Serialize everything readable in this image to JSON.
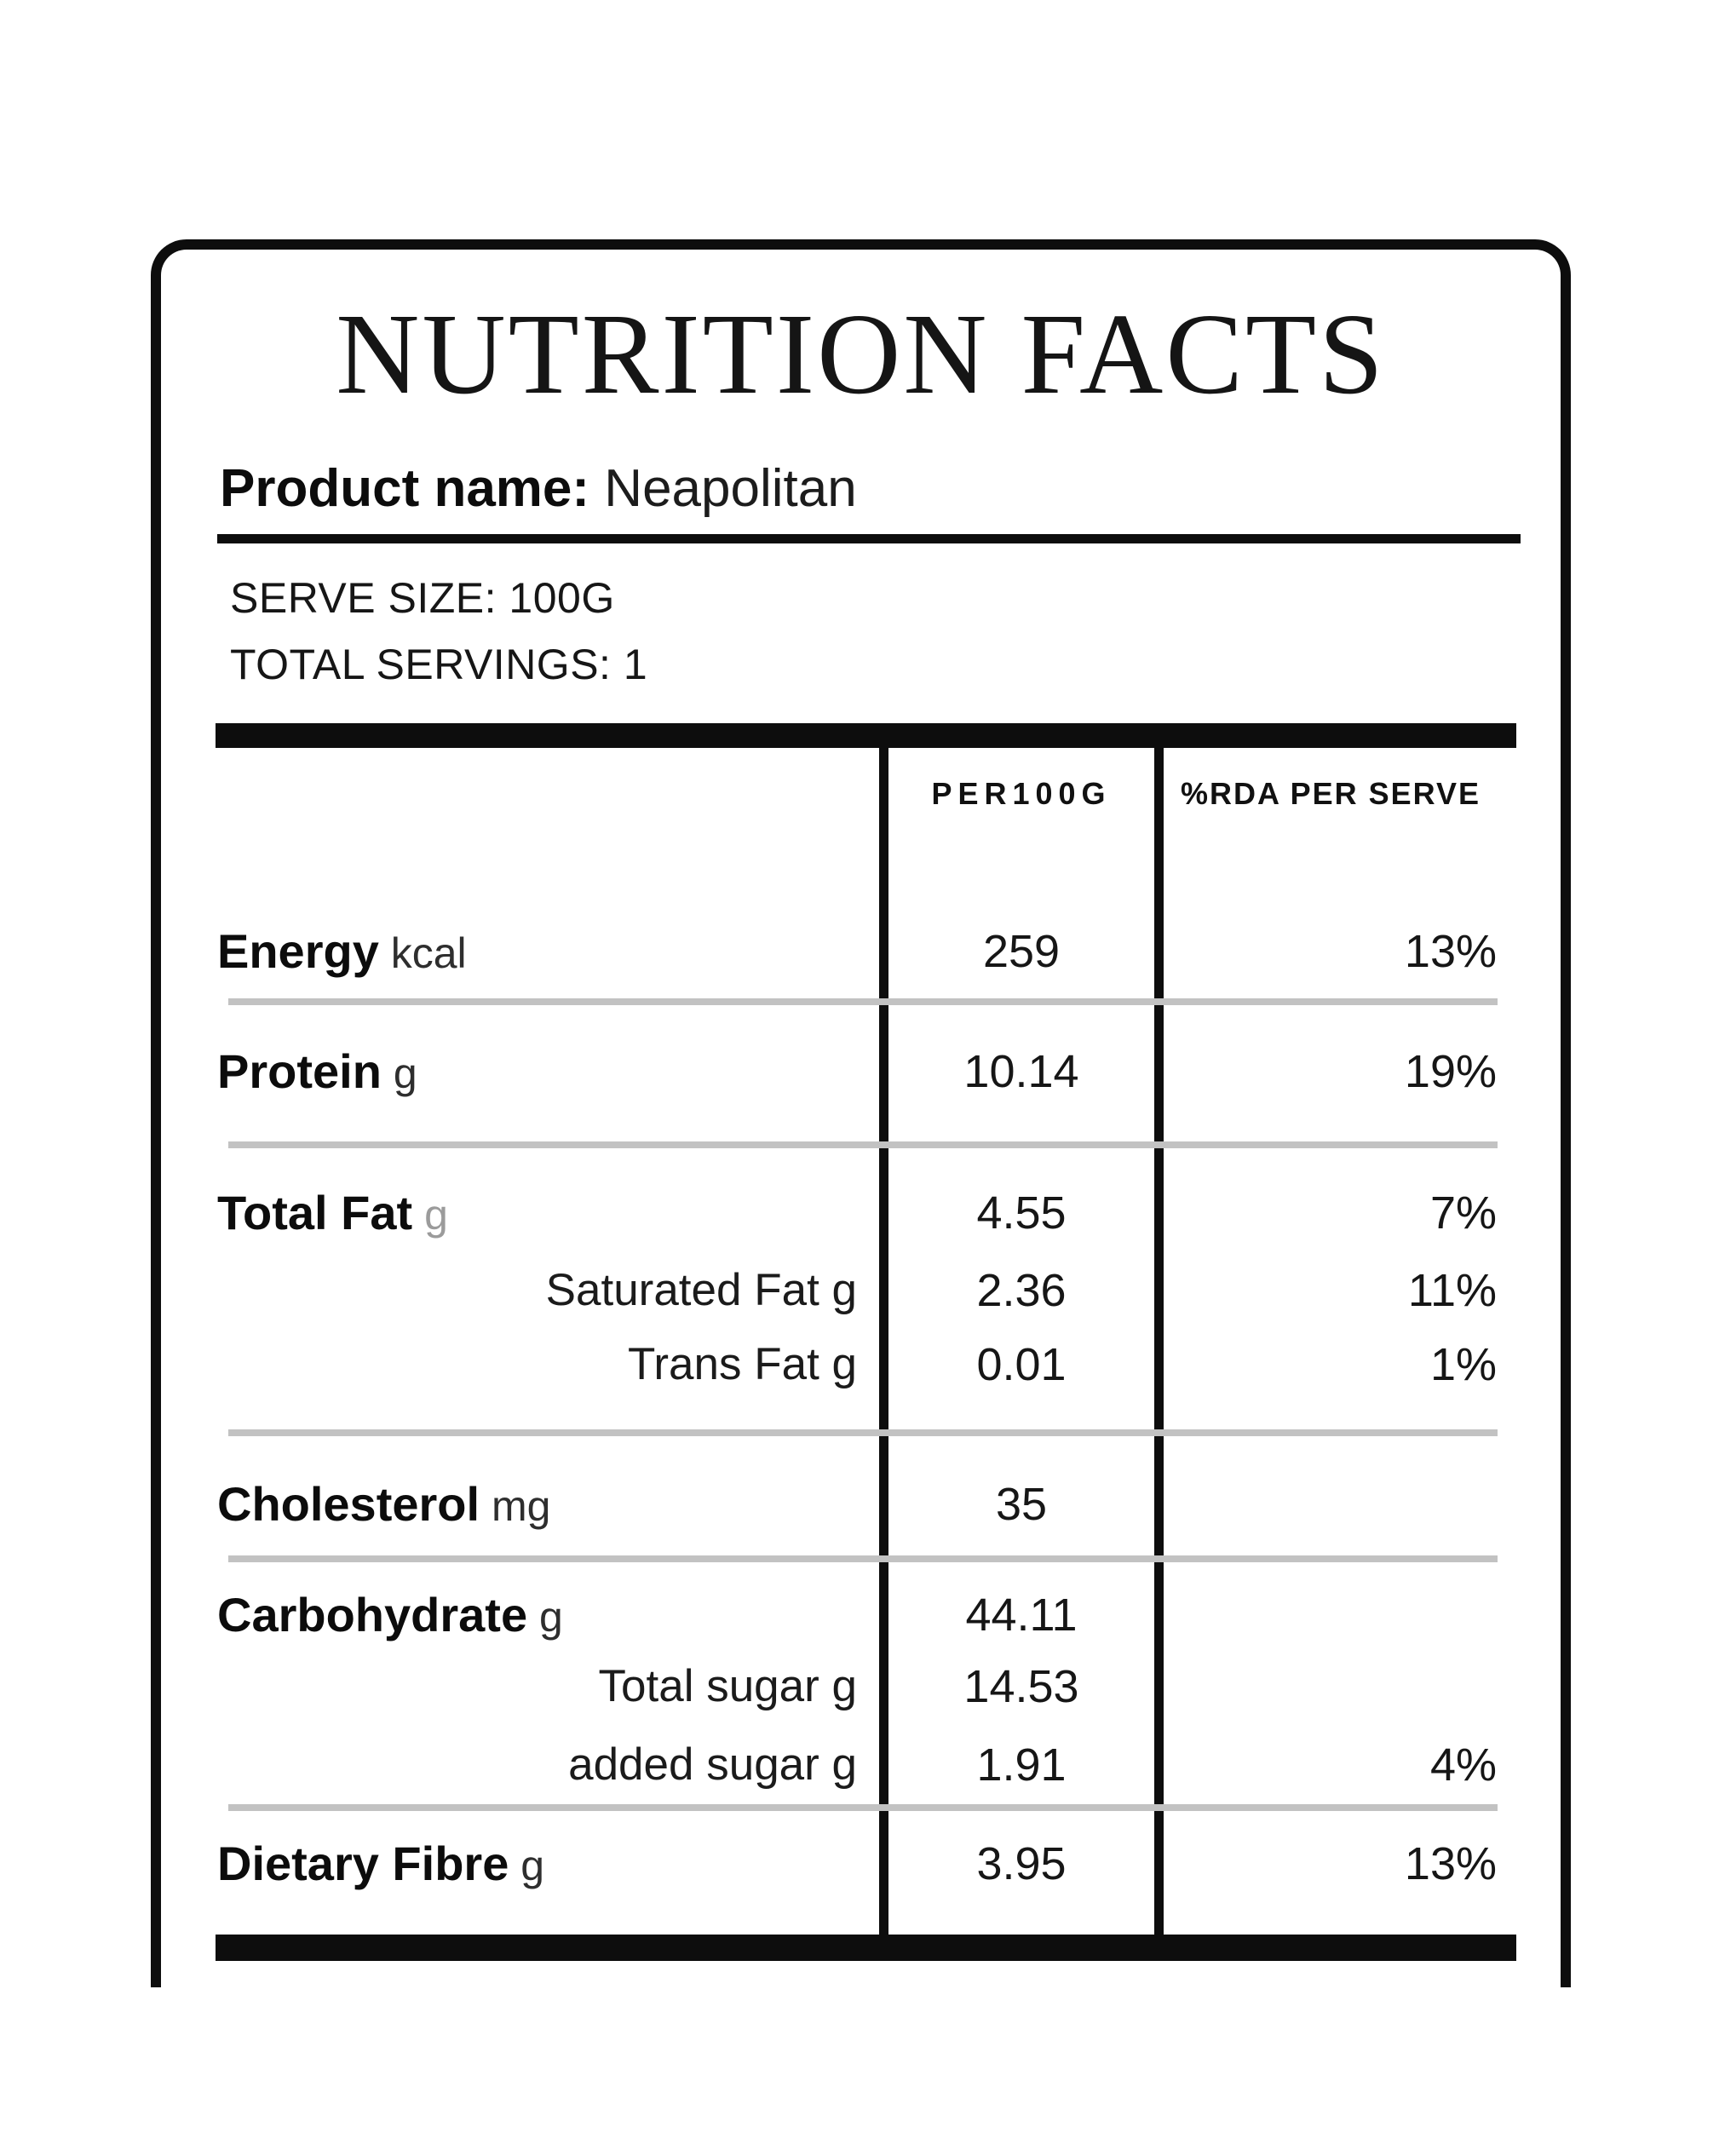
{
  "title": "NUTRITION FACTS",
  "product": {
    "label": "Product name:",
    "value": "Neapolitan"
  },
  "serving": {
    "serve_size": "SERVE SIZE: 100G",
    "total_servings": "TOTAL SERVINGS: 1"
  },
  "table": {
    "per_header": "PER100G",
    "rda_header": "%RDA PER SERVE",
    "groups": [
      {
        "rows": [
          {
            "label": "Energy",
            "unit": "kcal",
            "per": "259",
            "rda": "13%"
          }
        ]
      },
      {
        "rows": [
          {
            "label": "Protein",
            "unit": "g",
            "per": "10.14",
            "rda": "19%"
          }
        ]
      },
      {
        "rows": [
          {
            "label": "Total Fat",
            "unit": "g",
            "unit_muted": true,
            "per": "4.55",
            "rda": "7%"
          },
          {
            "label": "Saturated Fat g",
            "indent": true,
            "per": "2.36",
            "rda": "11%"
          },
          {
            "label": "Trans Fat g",
            "indent": true,
            "per": "0.01",
            "rda": "1%"
          }
        ]
      },
      {
        "rows": [
          {
            "label": "Cholesterol",
            "unit": "mg",
            "per": "35",
            "rda": ""
          }
        ]
      },
      {
        "rows": [
          {
            "label": "Carbohydrate",
            "unit": "g",
            "per": "44.11",
            "rda": ""
          },
          {
            "label": "Total sugar g",
            "indent": true,
            "per": "14.53",
            "rda": ""
          },
          {
            "label": "added sugar g",
            "indent": true,
            "per": "1.91",
            "rda": "4%"
          }
        ]
      },
      {
        "rows": [
          {
            "label": "Dietary Fibre",
            "unit": "g",
            "per": "3.95",
            "rda": "13%"
          }
        ]
      }
    ]
  },
  "colors": {
    "ink": "#0d0d0d",
    "separator": "#c2c2c2",
    "muted_unit": "#9b9b9b",
    "background": "#ffffff"
  }
}
